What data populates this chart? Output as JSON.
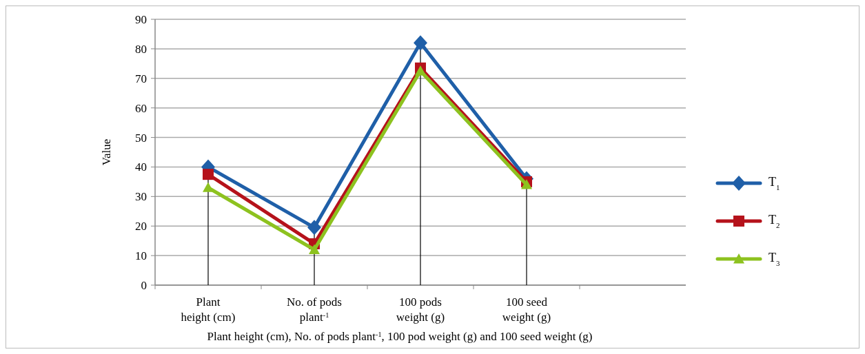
{
  "chart_data": {
    "type": "line",
    "xlabel": "Plant height (cm), No. of pods plant$^{-1}$, 100 pod weight (g) and 100 seed weight (g)",
    "ylabel": "Value",
    "categories": [
      "Plant height (cm)",
      "No. of pods plant$^{-1}$",
      "100 pods weight (g)",
      "100 seed weight (g)",
      null
    ],
    "series": [
      {
        "name": "T$_{1}$",
        "color": "#1f5fa8",
        "marker": "diamond",
        "values": [
          40,
          19.5,
          82,
          36,
          null
        ]
      },
      {
        "name": "T$_{2}$",
        "color": "#b5121b",
        "marker": "square",
        "values": [
          37.5,
          14,
          73.5,
          35,
          null
        ]
      },
      {
        "name": "T$_{3}$",
        "color": "#8dc21f",
        "marker": "triangle",
        "values": [
          33,
          12,
          72.5,
          34,
          null
        ]
      }
    ],
    "ylim": [
      0,
      90
    ],
    "yticks": [
      0,
      10,
      20,
      30,
      40,
      50,
      60,
      70,
      80,
      90
    ],
    "grid": "y",
    "legend": "right",
    "ref_lines": [
      {
        "axis": "x",
        "value": "Plant height (cm)",
        "color": "#000000"
      },
      {
        "axis": "x",
        "value": "No. of pods plant$^{-1}$",
        "color": "#000000"
      },
      {
        "axis": "x",
        "value": "100 pods weight (g)",
        "color": "#000000"
      },
      {
        "axis": "x",
        "value": "100 seed weight (g)",
        "color": "#000000"
      }
    ]
  }
}
